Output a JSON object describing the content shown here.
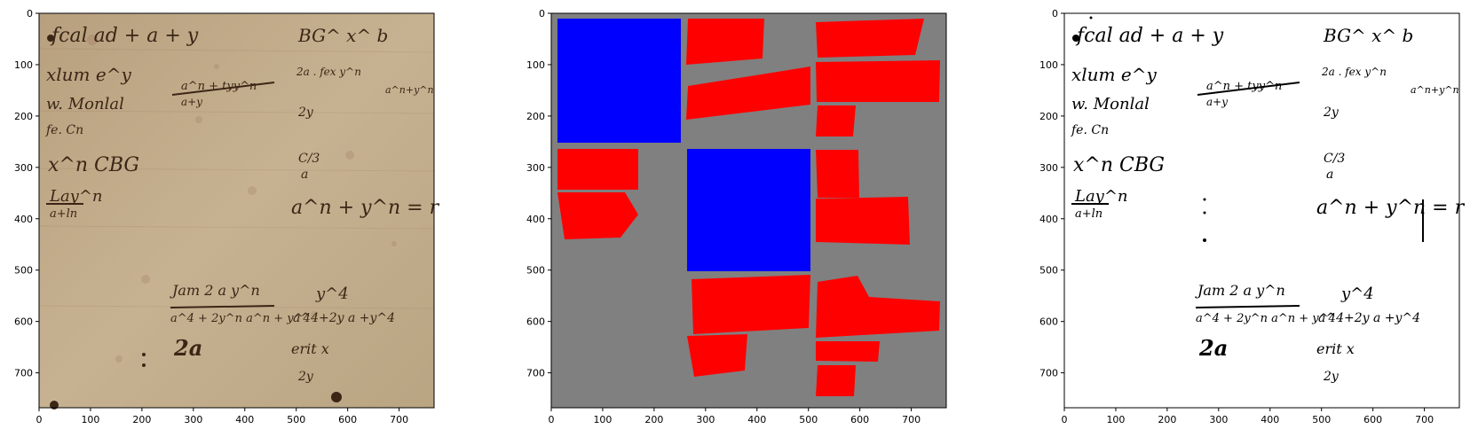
{
  "panels": [
    {
      "name": "manuscript-photo",
      "x_ticks": [
        "0",
        "100",
        "200",
        "300",
        "400",
        "500",
        "600",
        "700"
      ],
      "y_ticks": [
        "0",
        "100",
        "200",
        "300",
        "400",
        "500",
        "600",
        "700"
      ],
      "background": "#c2ad8a",
      "ink": "#3b2616"
    },
    {
      "name": "region-mask",
      "x_ticks": [
        "0",
        "100",
        "200",
        "300",
        "400",
        "500",
        "600",
        "700"
      ],
      "y_ticks": [
        "0",
        "100",
        "200",
        "300",
        "400",
        "500",
        "600",
        "700"
      ],
      "colors": {
        "background": "#808080",
        "text_region": "#ff0000",
        "image_region": "#0000ff"
      }
    },
    {
      "name": "binarized-output",
      "x_ticks": [
        "0",
        "100",
        "200",
        "300",
        "400",
        "500",
        "600",
        "700"
      ],
      "y_ticks": [
        "0",
        "100",
        "200",
        "300",
        "400",
        "500",
        "600",
        "700"
      ],
      "background": "#ffffff",
      "ink": "#000000"
    }
  ],
  "handwriting": {
    "line1": "fcal ad + a + y",
    "line2": "BG^ x^ b",
    "line3": "a^n + tyy^n",
    "line4": "2a . fex y^n",
    "line5": "x^n CBG",
    "line6": "Lay^n",
    "line7": "a^n + y^n = r",
    "line8": "Jam 2 a y^n",
    "line9": "a^4 + 2y^n a^n + y^4",
    "line10": "y^4",
    "line11": "2a",
    "line12": "erit x"
  }
}
